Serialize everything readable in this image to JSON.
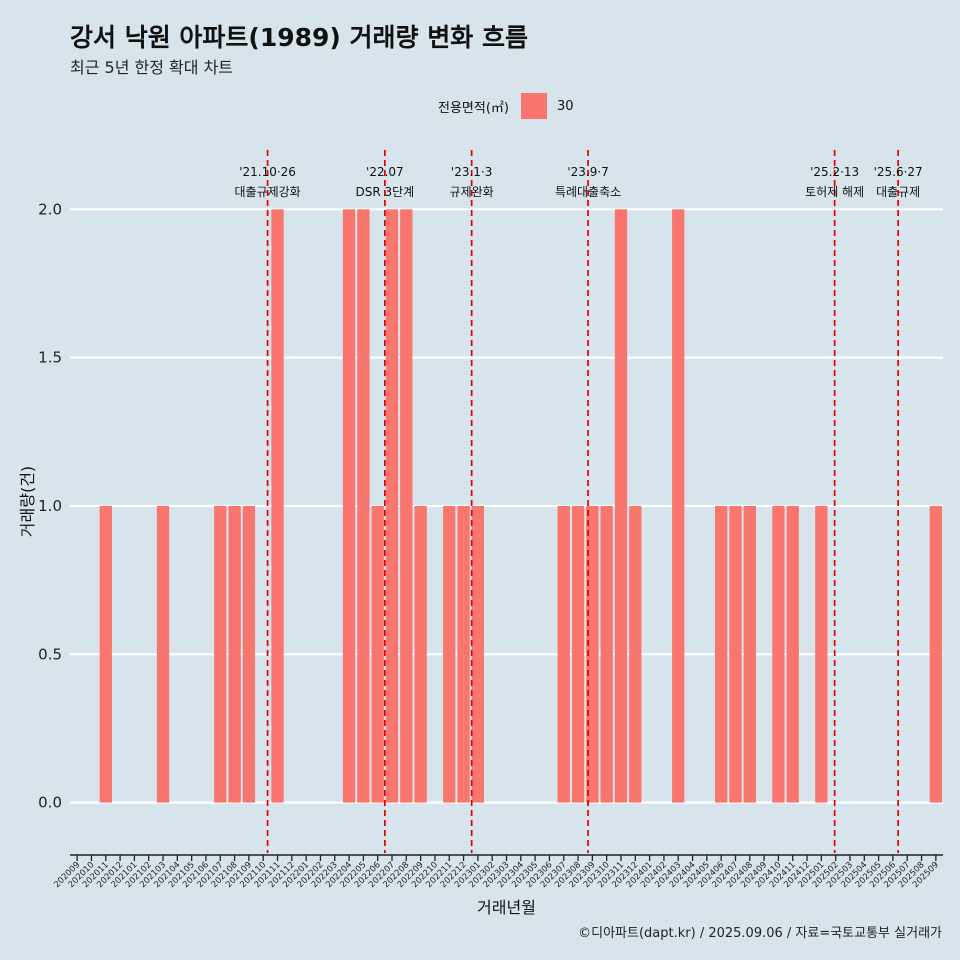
{
  "title": "강서 낙원 아파트(1989) 거래량 변화 흐름",
  "subtitle": "최근 5년 한정 확대 차트",
  "caption": "©디아파트(dapt.kr) / 2025.09.06 / 자료=국토교통부 실거래가",
  "legend": {
    "title": "전용면적(㎡)",
    "entries": [
      {
        "label": "30",
        "color": "#f8766d"
      }
    ]
  },
  "chart_data": {
    "type": "bar",
    "xlabel": "거래년월",
    "ylabel": "거래량(건)",
    "ylim": [
      -0.17,
      2.2
    ],
    "yticks": [
      0.0,
      0.5,
      1.0,
      1.5,
      2.0
    ],
    "ytick_labels": [
      "0.0",
      "0.5",
      "1.0",
      "1.5",
      "2.0"
    ],
    "grid": true,
    "legend_position": "top",
    "bar_color": "#f8766d",
    "categories": [
      "202009",
      "202010",
      "202011",
      "202012",
      "202101",
      "202102",
      "202103",
      "202104",
      "202105",
      "202106",
      "202107",
      "202108",
      "202109",
      "202110",
      "202111",
      "202112",
      "202201",
      "202202",
      "202203",
      "202204",
      "202205",
      "202206",
      "202207",
      "202208",
      "202209",
      "202210",
      "202211",
      "202212",
      "202301",
      "202302",
      "202303",
      "202304",
      "202305",
      "202306",
      "202307",
      "202308",
      "202309",
      "202310",
      "202311",
      "202312",
      "202401",
      "202402",
      "202403",
      "202404",
      "202405",
      "202406",
      "202407",
      "202408",
      "202409",
      "202410",
      "202411",
      "202412",
      "202501",
      "202502",
      "202503",
      "202504",
      "202505",
      "202506",
      "202507",
      "202508",
      "202509"
    ],
    "series": [
      {
        "values": [
          0,
          0,
          1,
          0,
          0,
          0,
          1,
          0,
          0,
          0,
          1,
          1,
          1,
          0,
          2,
          0,
          0,
          0,
          0,
          2,
          2,
          1,
          2,
          2,
          1,
          0,
          1,
          1,
          1,
          0,
          0,
          0,
          0,
          0,
          1,
          1,
          1,
          1,
          2,
          1,
          0,
          0,
          2,
          0,
          0,
          1,
          1,
          1,
          0,
          1,
          1,
          0,
          1,
          0,
          0,
          0,
          0,
          0,
          0,
          0,
          1
        ]
      }
    ],
    "annotations": [
      {
        "date": "2021-10-26",
        "date_label": "'21.10·26",
        "text": "대출규제강화",
        "style": "dashed",
        "color": "#e00000"
      },
      {
        "date": "2022-07-01",
        "date_label": "'22.07",
        "text": "DSR 3단계",
        "style": "dashed",
        "color": "#e00000"
      },
      {
        "date": "2023-01-03",
        "date_label": "'23.1·3",
        "text": "규제완화",
        "style": "dashed",
        "color": "#e00000"
      },
      {
        "date": "2023-09-07",
        "date_label": "'23.9·7",
        "text": "특례대출축소",
        "style": "dashed",
        "color": "#e00000"
      },
      {
        "date": "2025-02-13",
        "date_label": "'25.2·13",
        "text": "토허제 해제",
        "style": "dashed",
        "color": "#e00000"
      },
      {
        "date": "2025-06-27",
        "date_label": "'25.6·27",
        "text": "대출규제",
        "style": "dashed",
        "color": "#e00000"
      }
    ]
  }
}
